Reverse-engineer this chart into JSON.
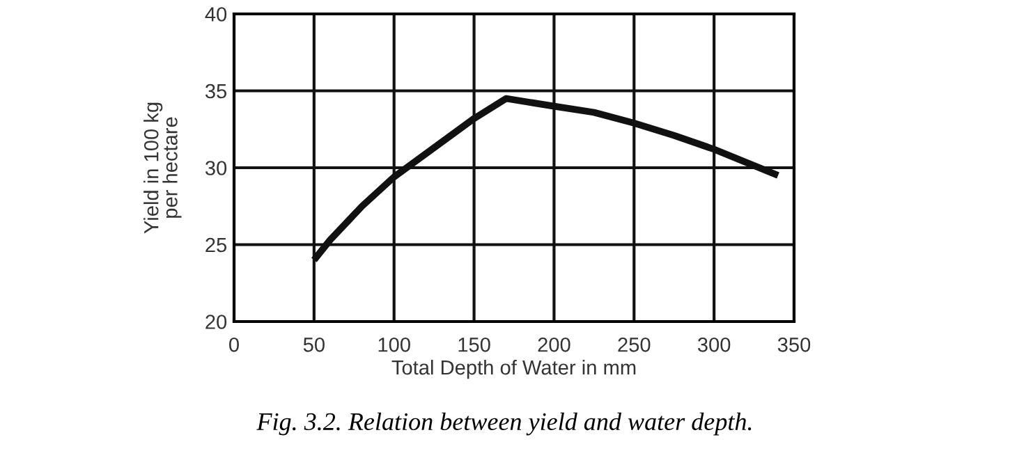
{
  "chart_data": {
    "type": "line",
    "title": "Fig. 3.2. Relation between yield and water depth.",
    "xlabel": "Total Depth of Water in mm",
    "ylabel": "Yield in 100 kg\nper hectare",
    "x": [
      50,
      60,
      80,
      100,
      125,
      150,
      170,
      200,
      225,
      250,
      275,
      300,
      340
    ],
    "series": [
      {
        "color": "#111111",
        "values": [
          24.0,
          25.3,
          27.5,
          29.4,
          31.3,
          33.2,
          34.5,
          34.0,
          33.6,
          32.9,
          32.1,
          31.2,
          29.5
        ]
      }
    ],
    "xlim": [
      0,
      350
    ],
    "xticks": [
      0,
      50,
      100,
      150,
      200,
      250,
      300,
      350
    ],
    "ylim": [
      20,
      40
    ],
    "yticks": [
      20,
      25,
      30,
      35,
      40
    ],
    "grid": true,
    "marker": "none",
    "line_style": "solid"
  }
}
